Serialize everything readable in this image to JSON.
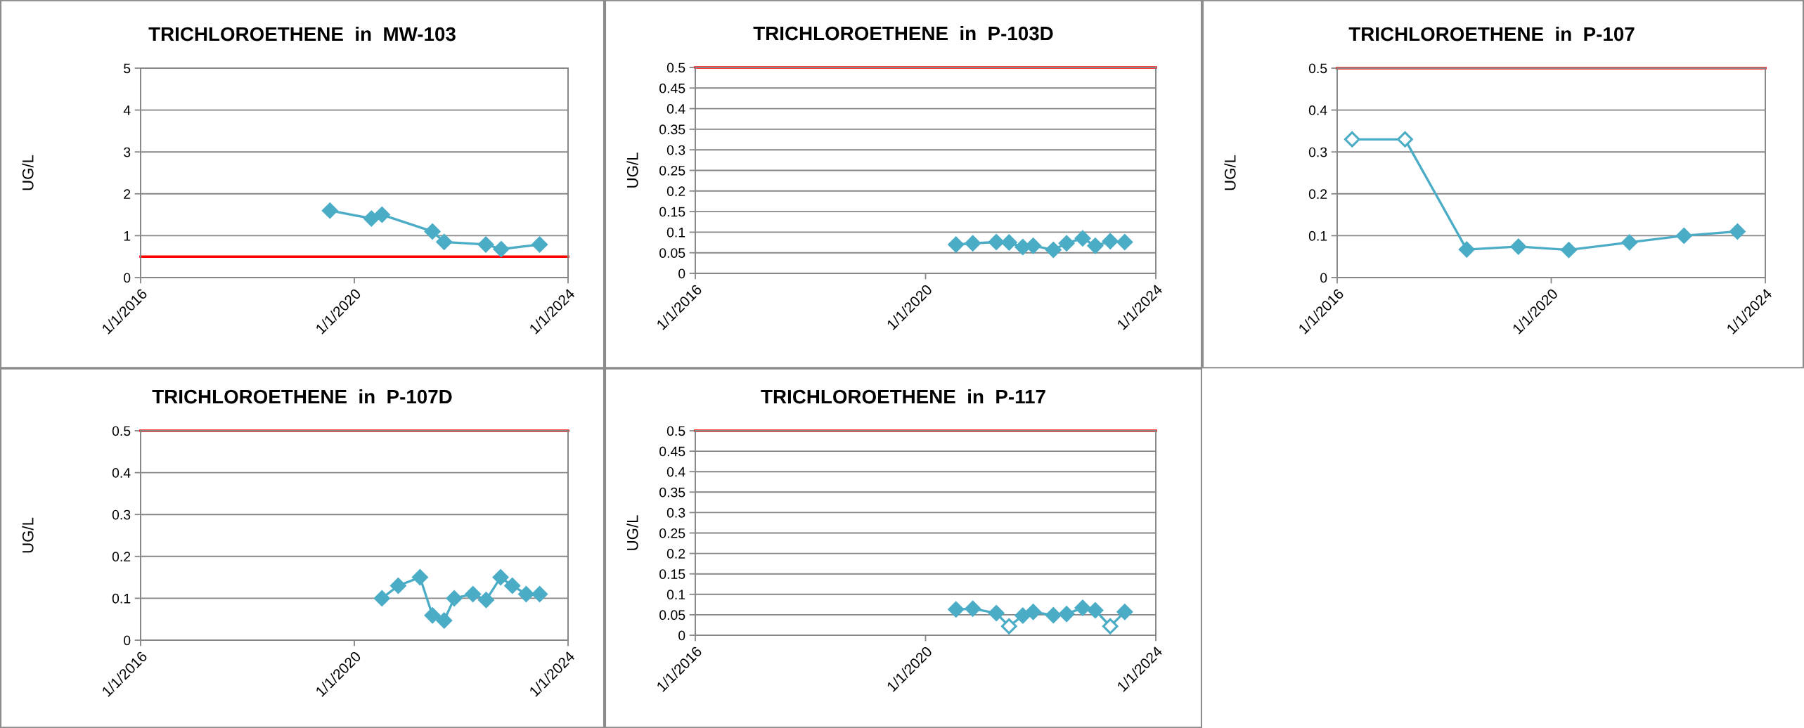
{
  "chart_data": [
    {
      "type": "line",
      "title": "TRICHLOROETHENE  in  MW-103",
      "ylabel": "UG/L",
      "grid": "y",
      "marker": "diamond",
      "line_style": "solid",
      "xlim": [
        "2016-01-01",
        "2024-01-01"
      ],
      "xticks": [
        {
          "value": "2016-01-01",
          "label": "1/1/2016"
        },
        {
          "value": "2020-01-01",
          "label": "1/1/2020"
        },
        {
          "value": "2024-01-01",
          "label": "1/1/2024"
        }
      ],
      "ylim": [
        0,
        5
      ],
      "yticks": [
        0,
        1,
        2,
        3,
        4,
        5
      ],
      "ref_lines": [
        {
          "axis": "y",
          "value": 0.5,
          "color": "#ff0000"
        }
      ],
      "series": [
        {
          "color": "#4bacc6",
          "x": [
            "2019-07-18",
            "2020-04-27",
            "2020-07-08",
            "2021-06-18",
            "2021-09-06",
            "2022-06-18",
            "2022-10-01",
            "2023-06-21"
          ],
          "values": [
            1.6,
            1.41,
            1.5,
            1.1,
            0.85,
            0.79,
            0.68,
            0.79
          ]
        }
      ]
    },
    {
      "type": "line",
      "title": "TRICHLOROETHENE  in  P-103D",
      "ylabel": "UG/L",
      "grid": "y",
      "marker": "diamond",
      "line_style": "solid",
      "xlim": [
        "2016-01-01",
        "2024-01-01"
      ],
      "xticks": [
        {
          "value": "2016-01-01",
          "label": "1/1/2016"
        },
        {
          "value": "2020-01-01",
          "label": "1/1/2020"
        },
        {
          "value": "2024-01-01",
          "label": "1/1/2024"
        }
      ],
      "ylim": [
        0,
        0.5
      ],
      "yticks": [
        0,
        0.05,
        0.1,
        0.15,
        0.2,
        0.25,
        0.3,
        0.35,
        0.4,
        0.45,
        0.5
      ],
      "ref_lines": [
        {
          "axis": "y",
          "value": 0.5,
          "color": "#ff0000"
        }
      ],
      "series": [
        {
          "color": "#4bacc6",
          "x": [
            "2020-07-12",
            "2020-10-27",
            "2021-03-25",
            "2021-06-14",
            "2021-09-09",
            "2021-11-14",
            "2022-03-22",
            "2022-06-14",
            "2022-09-24",
            "2022-12-13",
            "2023-03-18",
            "2023-06-18"
          ],
          "values": [
            0.07,
            0.073,
            0.076,
            0.075,
            0.064,
            0.067,
            0.057,
            0.073,
            0.085,
            0.067,
            0.078,
            0.076
          ]
        }
      ]
    },
    {
      "type": "line",
      "title": "TRICHLOROETHENE  in  P-107",
      "ylabel": "UG/L",
      "grid": "y",
      "marker": "diamond",
      "line_style": "solid",
      "xlim": [
        "2016-01-01",
        "2024-01-01"
      ],
      "xticks": [
        {
          "value": "2016-01-01",
          "label": "1/1/2016"
        },
        {
          "value": "2020-01-01",
          "label": "1/1/2020"
        },
        {
          "value": "2024-01-01",
          "label": "1/1/2024"
        }
      ],
      "ylim": [
        0,
        0.5
      ],
      "yticks": [
        0,
        0.1,
        0.2,
        0.3,
        0.4,
        0.5
      ],
      "ref_lines": [
        {
          "axis": "y",
          "value": 0.5,
          "color": "#ff0000"
        }
      ],
      "series": [
        {
          "color": "#4bacc6",
          "colors": [
            "#ffffff",
            "#ffffff",
            "#4bacc6",
            "#4bacc6",
            "#4bacc6",
            "#4bacc6",
            "#4bacc6",
            "#4bacc6"
          ],
          "x": [
            "2016-04-12",
            "2017-04-08",
            "2018-06-03",
            "2019-05-22",
            "2020-04-30",
            "2021-06-18",
            "2022-06-25",
            "2023-06-25"
          ],
          "values": [
            0.33,
            0.33,
            0.067,
            0.074,
            0.066,
            0.084,
            0.1,
            0.11
          ]
        }
      ]
    },
    {
      "type": "line",
      "title": "TRICHLOROETHENE  in  P-107D",
      "ylabel": "UG/L",
      "grid": "y",
      "marker": "diamond",
      "line_style": "solid",
      "xlim": [
        "2016-01-01",
        "2024-01-01"
      ],
      "xticks": [
        {
          "value": "2016-01-01",
          "label": "1/1/2016"
        },
        {
          "value": "2020-01-01",
          "label": "1/1/2020"
        },
        {
          "value": "2024-01-01",
          "label": "1/1/2024"
        }
      ],
      "ylim": [
        0,
        0.5
      ],
      "yticks": [
        0,
        0.1,
        0.2,
        0.3,
        0.4,
        0.5
      ],
      "ref_lines": [
        {
          "axis": "y",
          "value": 0.5,
          "color": "#ff0000"
        }
      ],
      "series": [
        {
          "color": "#4bacc6",
          "x": [
            "2020-07-08",
            "2020-10-27",
            "2021-03-25",
            "2021-06-18",
            "2021-09-06",
            "2021-11-14",
            "2022-03-22",
            "2022-06-20",
            "2022-09-27",
            "2022-12-16",
            "2023-03-21",
            "2023-06-21"
          ],
          "values": [
            0.1,
            0.13,
            0.15,
            0.059,
            0.047,
            0.1,
            0.11,
            0.096,
            0.15,
            0.13,
            0.11,
            0.11
          ]
        }
      ]
    },
    {
      "type": "line",
      "title": "TRICHLOROETHENE  in  P-117",
      "ylabel": "UG/L",
      "grid": "y",
      "marker": "diamond",
      "line_style": "solid",
      "xlim": [
        "2016-01-01",
        "2024-01-01"
      ],
      "xticks": [
        {
          "value": "2016-01-01",
          "label": "1/1/2016"
        },
        {
          "value": "2020-01-01",
          "label": "1/1/2020"
        },
        {
          "value": "2024-01-01",
          "label": "1/1/2024"
        }
      ],
      "ylim": [
        0,
        0.5
      ],
      "yticks": [
        0,
        0.05,
        0.1,
        0.15,
        0.2,
        0.25,
        0.3,
        0.35,
        0.4,
        0.45,
        0.5
      ],
      "ref_lines": [
        {
          "axis": "y",
          "value": 0.5,
          "color": "#ff0000"
        }
      ],
      "series": [
        {
          "color": "#4bacc6",
          "colors": [
            "#4bacc6",
            "#4bacc6",
            "#4bacc6",
            "#ffffff",
            "#4bacc6",
            "#4bacc6",
            "#4bacc6",
            "#4bacc6",
            "#4bacc6",
            "#4bacc6",
            "#ffffff",
            "#4bacc6"
          ],
          "x": [
            "2020-07-12",
            "2020-10-27",
            "2021-03-25",
            "2021-06-14",
            "2021-09-09",
            "2021-11-14",
            "2022-03-22",
            "2022-06-14",
            "2022-09-24",
            "2022-12-13",
            "2023-03-18",
            "2023-06-18"
          ],
          "values": [
            0.063,
            0.065,
            0.054,
            0.022,
            0.048,
            0.057,
            0.049,
            0.052,
            0.067,
            0.061,
            0.022,
            0.057
          ]
        }
      ]
    }
  ]
}
